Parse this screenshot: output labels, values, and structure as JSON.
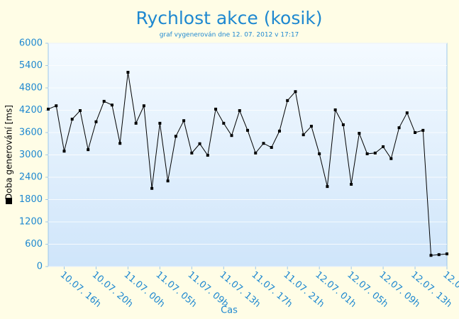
{
  "chart_data": {
    "type": "line",
    "title": "Rychlost akce (kosik)",
    "subtitle": "graf vygenerován dne 12. 07. 2012 v 17:17",
    "x_label": "Čas",
    "y_label": "Doba generování [ms]",
    "categories": [
      null,
      null,
      "10.07. 16h",
      null,
      null,
      null,
      "10.07. 20h",
      null,
      null,
      null,
      "11.07. 00h",
      null,
      null,
      null,
      "11.07. 05h",
      null,
      null,
      null,
      "11.07. 09h",
      null,
      null,
      null,
      "11.07. 13h",
      null,
      null,
      null,
      "11.07. 17h",
      null,
      null,
      null,
      "11.07. 21h",
      null,
      null,
      null,
      "12.07. 01h",
      null,
      null,
      null,
      "12.07. 05h",
      null,
      null,
      null,
      "12.07. 09h",
      null,
      null,
      null,
      "12.07. 13h",
      null,
      null,
      null,
      "12.0"
    ],
    "series": [
      {
        "name": "Doba generování [ms]",
        "color": "#000000",
        "values": [
          4230,
          4320,
          3100,
          3960,
          4190,
          3140,
          3890,
          4440,
          4340,
          3310,
          5220,
          3850,
          4320,
          2100,
          3850,
          2300,
          3500,
          3920,
          3050,
          3300,
          2990,
          4230,
          3850,
          3520,
          4190,
          3660,
          3050,
          3310,
          3200,
          3640,
          4460,
          4700,
          3540,
          3770,
          3030,
          2150,
          4210,
          3810,
          2210,
          3580,
          3030,
          3050,
          3220,
          2900,
          3730,
          4130,
          3600,
          3660,
          300,
          320,
          340
        ]
      }
    ],
    "ylim": [
      0,
      6000
    ],
    "yticks": [
      0,
      600,
      1200,
      1800,
      2400,
      3000,
      3600,
      4200,
      4800,
      5400,
      6000
    ],
    "grid": true
  }
}
